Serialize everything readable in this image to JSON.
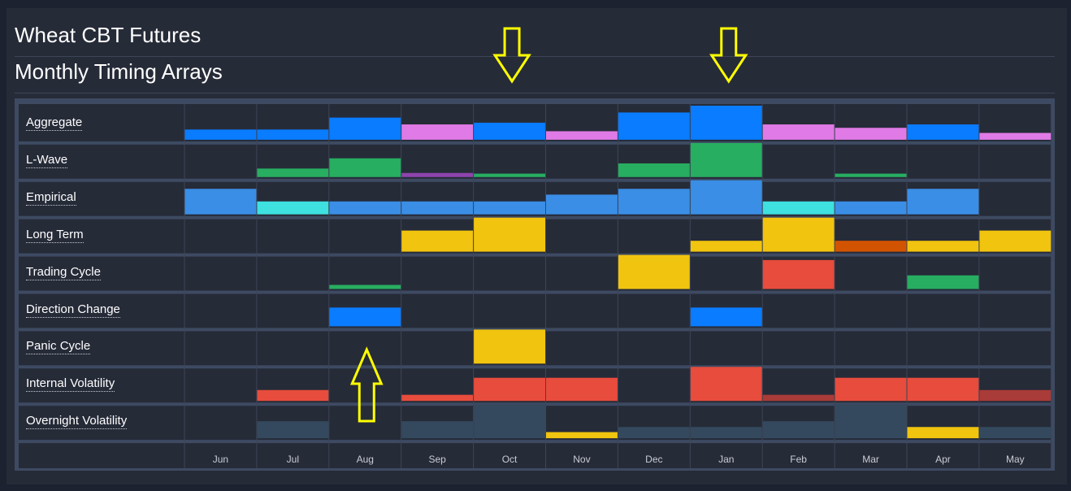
{
  "header": {
    "title": "Wheat CBT Futures",
    "subtitle": "Monthly Timing Arrays"
  },
  "chart_data": {
    "type": "heatmap",
    "months": [
      "Jun",
      "Jul",
      "Aug",
      "Sep",
      "Oct",
      "Nov",
      "Dec",
      "Jan",
      "Feb",
      "Mar",
      "Apr",
      "May"
    ],
    "rows": [
      {
        "label": "Aggregate",
        "values": [
          0.3,
          0.3,
          0.65,
          0.45,
          0.5,
          0.25,
          0.8,
          1.0,
          0.45,
          0.35,
          0.45,
          0.2
        ],
        "colors": [
          "#0a7cff",
          "#0a7cff",
          "#0a7cff",
          "#e07ae6",
          "#0a7cff",
          "#e07ae6",
          "#0a7cff",
          "#0a7cff",
          "#e07ae6",
          "#e07ae6",
          "#0a7cff",
          "#e07ae6"
        ]
      },
      {
        "label": "L-Wave",
        "values": [
          0,
          0.25,
          0.55,
          0.12,
          0.1,
          0,
          0.4,
          1.0,
          0,
          0.1,
          0,
          0
        ],
        "colors": [
          "#27ae60",
          "#27ae60",
          "#27ae60",
          "#8e44ad",
          "#27ae60",
          "#27ae60",
          "#27ae60",
          "#27ae60",
          "#27ae60",
          "#27ae60",
          "#27ae60",
          "#27ae60"
        ]
      },
      {
        "label": "Empirical",
        "values": [
          0.75,
          0.38,
          0.38,
          0.38,
          0.38,
          0.58,
          0.75,
          1.0,
          0.38,
          0.38,
          0.75,
          0
        ],
        "colors": [
          "#3a8ee6",
          "#3ee0e0",
          "#3a8ee6",
          "#3a8ee6",
          "#3a8ee6",
          "#3a8ee6",
          "#3a8ee6",
          "#3a8ee6",
          "#3ee0e0",
          "#3a8ee6",
          "#3a8ee6",
          "#3a8ee6"
        ]
      },
      {
        "label": "Long Term",
        "values": [
          0,
          0,
          0,
          0.62,
          1.0,
          0,
          0,
          0.32,
          1.0,
          0.32,
          0.32,
          0.62
        ],
        "colors": [
          "#f1c40f",
          "#f1c40f",
          "#f1c40f",
          "#f1c40f",
          "#f1c40f",
          "#f1c40f",
          "#f1c40f",
          "#f1c40f",
          "#f1c40f",
          "#d35400",
          "#f1c40f",
          "#f1c40f"
        ]
      },
      {
        "label": "Trading Cycle",
        "values": [
          0,
          0,
          0.12,
          0,
          0,
          0,
          1.0,
          0,
          0.85,
          0,
          0.4,
          0
        ],
        "colors": [
          "#27ae60",
          "#27ae60",
          "#27ae60",
          "#27ae60",
          "#27ae60",
          "#27ae60",
          "#f1c40f",
          "#27ae60",
          "#e74c3c",
          "#27ae60",
          "#27ae60",
          "#27ae60"
        ]
      },
      {
        "label": "Direction Change",
        "values": [
          0,
          0,
          0.55,
          0,
          0,
          0,
          0,
          0.55,
          0,
          0,
          0,
          0
        ],
        "colors": [
          "#0a7cff",
          "#0a7cff",
          "#0a7cff",
          "#0a7cff",
          "#0a7cff",
          "#0a7cff",
          "#0a7cff",
          "#0a7cff",
          "#0a7cff",
          "#0a7cff",
          "#0a7cff",
          "#0a7cff"
        ]
      },
      {
        "label": "Panic Cycle",
        "values": [
          0,
          0,
          0,
          0,
          1.0,
          0,
          0,
          0,
          0,
          0,
          0,
          0
        ],
        "colors": [
          "#f1c40f",
          "#f1c40f",
          "#f1c40f",
          "#f1c40f",
          "#f1c40f",
          "#f1c40f",
          "#f1c40f",
          "#f1c40f",
          "#f1c40f",
          "#f1c40f",
          "#f1c40f",
          "#f1c40f"
        ]
      },
      {
        "label": "Internal Volatility",
        "values": [
          0,
          0.32,
          0,
          0.18,
          0.68,
          0.68,
          0,
          1.0,
          0.18,
          0.68,
          0.68,
          0.32
        ],
        "colors": [
          "#e74c3c",
          "#e74c3c",
          "#e74c3c",
          "#e74c3c",
          "#e74c3c",
          "#e74c3c",
          "#e74c3c",
          "#e74c3c",
          "#a93b38",
          "#e74c3c",
          "#e74c3c",
          "#a93b38"
        ]
      },
      {
        "label": "Overnight Volatility",
        "values": [
          0,
          0.5,
          0,
          0.5,
          1.0,
          0.18,
          0.33,
          0.33,
          0.5,
          1.0,
          0.33,
          0.33
        ],
        "colors": [
          "#34495e",
          "#34495e",
          "#34495e",
          "#34495e",
          "#34495e",
          "#f1c40f",
          "#34495e",
          "#34495e",
          "#34495e",
          "#34495e",
          "#f1c40f",
          "#34495e"
        ]
      }
    ],
    "annotations": [
      {
        "type": "arrow-down",
        "month": "Oct"
      },
      {
        "type": "arrow-down",
        "month": "Jan"
      },
      {
        "type": "arrow-up",
        "month": "Aug"
      }
    ]
  }
}
